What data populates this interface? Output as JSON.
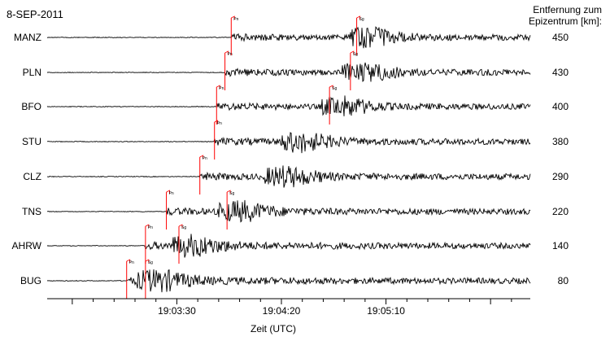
{
  "chart_data": {
    "type": "line",
    "title": "8-SEP-2011",
    "xlabel": "Zeit (UTC)",
    "ylabel": "",
    "distance_header": [
      "Entfernung zum",
      "Epizentrum [km]:"
    ],
    "x_ticks": [
      "19:03:30",
      "19:04:20",
      "19:05:10"
    ],
    "xlim": [
      "19:02:28",
      "19:06:19"
    ],
    "grid": false,
    "line_color": "#000000",
    "pick_color": "#ff0000",
    "pick_labels": {
      "p": "Pn",
      "s": "Sg"
    },
    "stations": [
      {
        "name": "MANZ",
        "distance_km": 450,
        "p_arrival": "19:03:56",
        "s_arrival": "19:04:56"
      },
      {
        "name": "PLN",
        "distance_km": 430,
        "p_arrival": "19:03:53",
        "s_arrival": "19:04:53"
      },
      {
        "name": "BFO",
        "distance_km": 400,
        "p_arrival": "19:03:49",
        "s_arrival": "19:04:43"
      },
      {
        "name": "STU",
        "distance_km": 380,
        "p_arrival": "19:03:48",
        "s_arrival": ""
      },
      {
        "name": "CLZ",
        "distance_km": 290,
        "p_arrival": "19:03:41",
        "s_arrival": ""
      },
      {
        "name": "TNS",
        "distance_km": 220,
        "p_arrival": "19:03:25",
        "s_arrival": "19:03:54"
      },
      {
        "name": "AHRW",
        "distance_km": 140,
        "p_arrival": "19:03:15",
        "s_arrival": "19:03:31"
      },
      {
        "name": "BUG",
        "distance_km": 80,
        "p_arrival": "19:03:06",
        "s_arrival": "19:03:15"
      }
    ]
  }
}
